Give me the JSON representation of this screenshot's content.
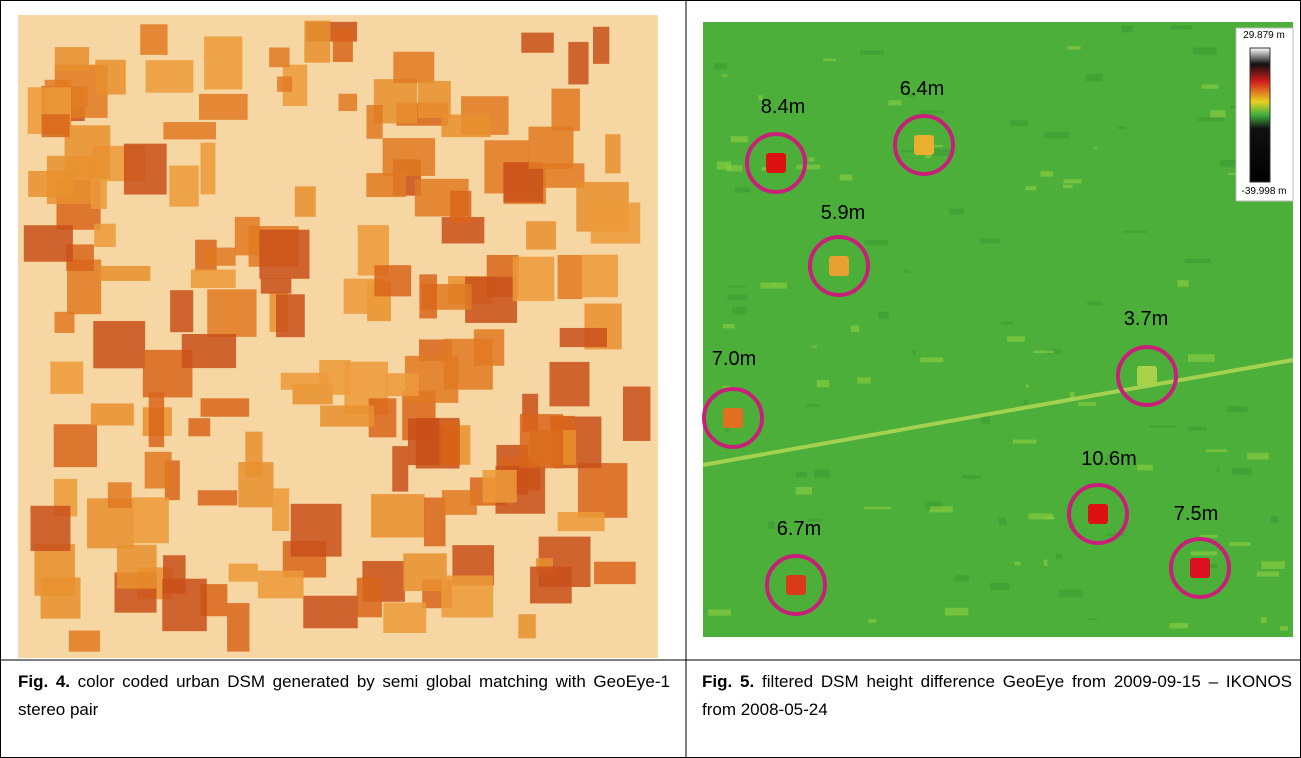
{
  "figure4": {
    "label": "Fig. 4.",
    "caption": "color coded urban DSM generated by semi global matching with GeoEye-1 stereo pair"
  },
  "figure5": {
    "label": "Fig. 5.",
    "caption": "filtered DSM height difference GeoEye from 2009-09-15 – IKONOS from 2008-05-24",
    "legend": {
      "max": "29.879 m",
      "min": "-39.998 m"
    },
    "annotations": [
      "8.4m",
      "6.4m",
      "5.9m",
      "3.7m",
      "7.0m",
      "10.6m",
      "7.5m",
      "6.7m"
    ]
  }
}
